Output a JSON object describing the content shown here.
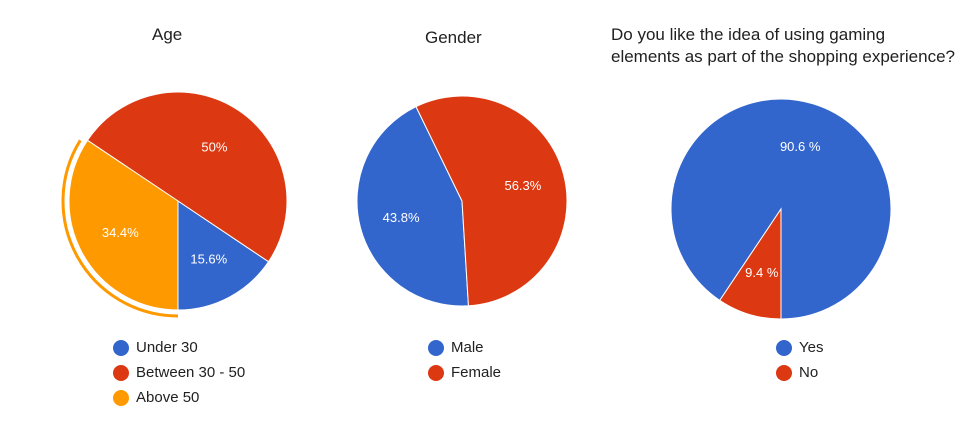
{
  "chart_data": [
    {
      "type": "pie",
      "title": "Age",
      "labels": [
        "Under 30",
        "Between 30 - 50",
        "Above 50"
      ],
      "values": [
        15.6,
        50,
        34.4
      ],
      "value_labels": [
        "15.6%",
        "50%",
        "34.4%"
      ],
      "colors": [
        "#3366cc",
        "#dc3912",
        "#ff9900"
      ],
      "highlighted": "Above 50",
      "legend": "bottom"
    },
    {
      "type": "pie",
      "title": "Gender",
      "labels": [
        "Male",
        "Female"
      ],
      "values": [
        43.8,
        56.3
      ],
      "value_labels": [
        "43.8%",
        "56.3%"
      ],
      "colors": [
        "#3366cc",
        "#dc3912"
      ],
      "legend": "bottom"
    },
    {
      "type": "pie",
      "title_lines": [
        "Do you like the idea of using gaming",
        "elements as part of the shopping experience?"
      ],
      "labels": [
        "Yes",
        "No"
      ],
      "values": [
        90.6,
        9.4
      ],
      "value_labels": [
        "90.6 %",
        "9.4 %"
      ],
      "colors": [
        "#3366cc",
        "#dc3912"
      ],
      "legend": "bottom"
    }
  ]
}
